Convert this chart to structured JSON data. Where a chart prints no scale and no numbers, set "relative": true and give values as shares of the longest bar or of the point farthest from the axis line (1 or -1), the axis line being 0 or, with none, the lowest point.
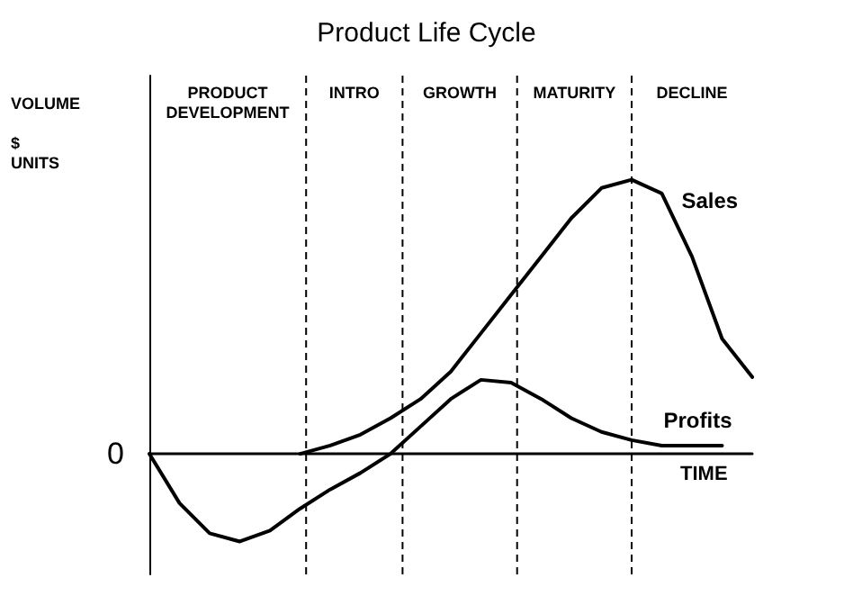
{
  "chart_data": {
    "type": "line",
    "title": "Product Life Cycle",
    "xlabel": "TIME",
    "ylabel": "VOLUME\n\n$\nUNITS",
    "relative": true,
    "grid": false,
    "legend": false,
    "marker": "none",
    "line_style": "solid",
    "annotations": [
      "PRODUCT\nDEVELOPMENT",
      "INTRO",
      "GROWTH",
      "MATURITY",
      "DECLINE",
      "0"
    ],
    "categories": [
      null,
      null,
      null,
      null,
      null,
      null,
      null,
      null,
      null,
      null,
      null,
      null,
      null,
      null,
      null,
      null,
      null,
      null,
      null,
      null,
      null
    ],
    "series": [
      {
        "name": "Sales",
        "color": "#000000",
        "values": [
          null,
          null,
          null,
          null,
          null,
          0,
          0.03,
          0.07,
          0.13,
          0.2,
          0.3,
          0.44,
          0.58,
          0.72,
          0.86,
          0.97,
          1.0,
          0.95,
          0.72,
          0.42,
          0.28
        ]
      },
      {
        "name": "Profits",
        "color": "#000000",
        "values": [
          0,
          -0.18,
          -0.29,
          -0.32,
          -0.28,
          -0.2,
          -0.13,
          -0.07,
          0.0,
          0.1,
          0.2,
          0.27,
          0.26,
          0.2,
          0.13,
          0.08,
          0.05,
          0.03,
          0.03,
          0.03,
          null
        ]
      }
    ]
  }
}
